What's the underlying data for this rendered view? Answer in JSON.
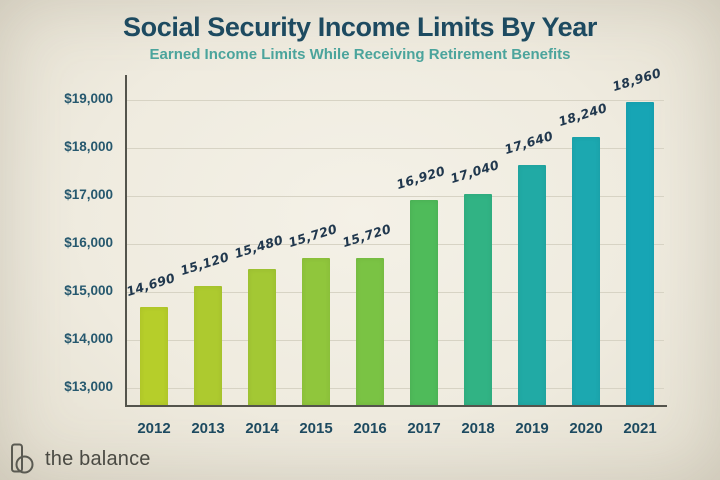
{
  "chart_data": {
    "type": "bar",
    "title": "Social Security Income Limits By Year",
    "subtitle": "Earned Income Limits While Receiving Retirement Benefits",
    "categories": [
      "2012",
      "2013",
      "2014",
      "2015",
      "2016",
      "2017",
      "2018",
      "2019",
      "2020",
      "2021"
    ],
    "values": [
      14690,
      15120,
      15480,
      15720,
      15720,
      16920,
      17040,
      17640,
      18240,
      18960
    ],
    "value_labels": [
      "14,690",
      "15,120",
      "15,480",
      "15,720",
      "15,720",
      "16,920",
      "17,040",
      "17,640",
      "18,240",
      "18,960"
    ],
    "bar_colors": [
      "#b6ce2a",
      "#adca2f",
      "#a3c834",
      "#90c63c",
      "#7ac344",
      "#4fbb5a",
      "#31b384",
      "#21aaa5",
      "#1ca8b0",
      "#17a5b5"
    ],
    "ytick_labels": [
      "$13,000",
      "$14,000",
      "$15,000",
      "$16,000",
      "$17,000",
      "$18,000",
      "$19,000"
    ],
    "ytick_values": [
      13000,
      14000,
      15000,
      16000,
      17000,
      18000,
      19000
    ],
    "ylim": [
      12650,
      19520
    ],
    "xlabel": "",
    "ylabel": "",
    "grid": true,
    "legend": false
  },
  "footer": {
    "logo_text": "the balance"
  },
  "colors": {
    "title": "#1d4a60",
    "subtitle": "#4ba49c",
    "axis": "#54544c",
    "gridline": "#d7d3c4",
    "tick_text": "#26586e",
    "value_text": "#21384e",
    "background": "#efebdf"
  }
}
